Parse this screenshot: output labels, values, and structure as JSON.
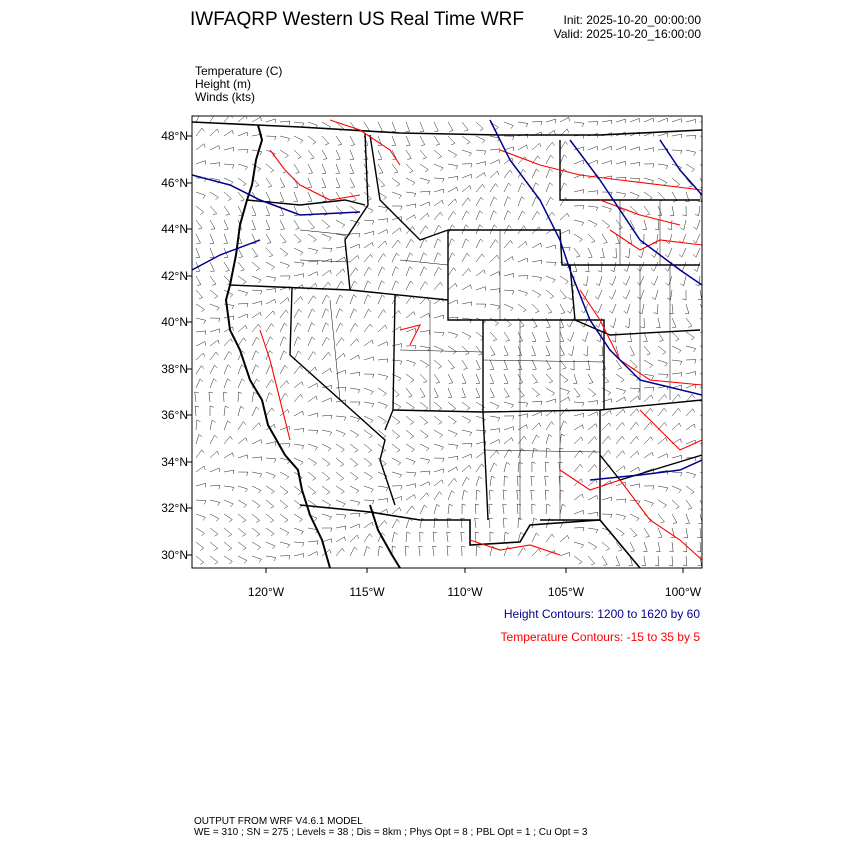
{
  "header": {
    "title": "IWFAQRP Western US Real Time WRF",
    "init": "Init: 2025-10-20_00:00:00",
    "valid": "Valid: 2025-10-20_16:00:00"
  },
  "fields": [
    "Temperature   (C)",
    "Height   (m)",
    "Winds   (kts)"
  ],
  "map": {
    "lat_labels": [
      "48°N",
      "46°N",
      "44°N",
      "42°N",
      "40°N",
      "38°N",
      "36°N",
      "34°N",
      "32°N",
      "30°N"
    ],
    "lon_labels": [
      "120°W",
      "115°W",
      "110°W",
      "105°W",
      "100°W"
    ],
    "colors": {
      "height_contour": "#00008b",
      "temperature_contour": "#ff0000",
      "boundaries": "#000000",
      "wind_barbs": "#000000"
    }
  },
  "legend": {
    "height": "Height Contours: 1200 to 1620 by 60",
    "temperature": "Temperature Contours: -15 to 35 by 5"
  },
  "footer": {
    "line1": "OUTPUT FROM WRF V4.6.1 MODEL",
    "line2": "WE = 310 ; SN = 275 ; Levels = 38 ; Dis = 8km ; Phys Opt = 8 ; PBL Opt = 1 ; Cu Opt = 3"
  }
}
